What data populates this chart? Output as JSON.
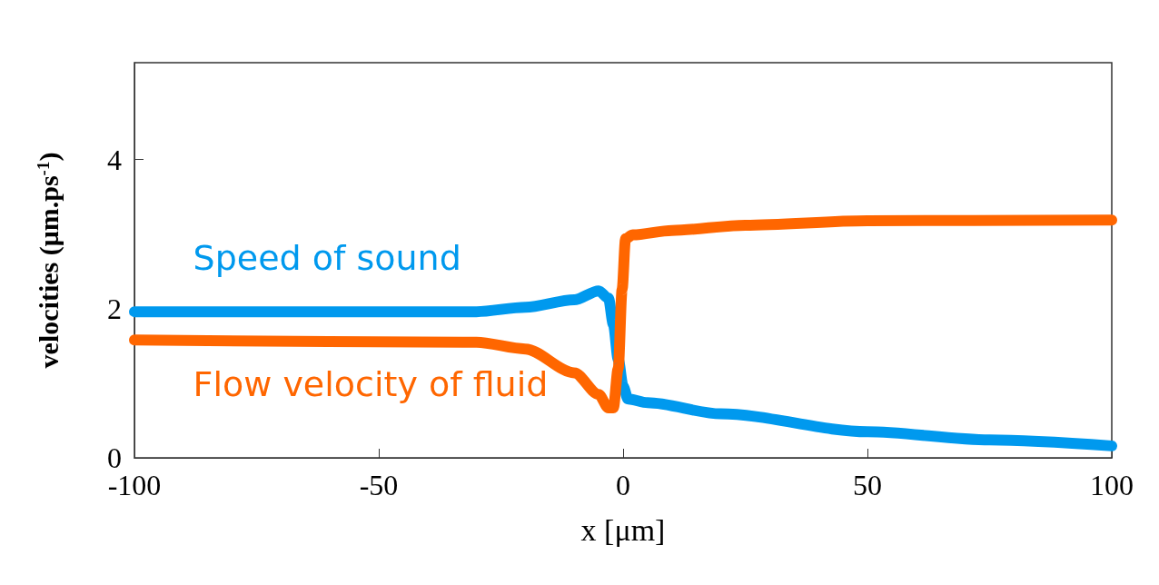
{
  "chart_data": {
    "type": "line",
    "xlabel": "x [μm]",
    "ylabel": "velocities (μm.ps$^{-1}$)",
    "xlim": [
      -100,
      100
    ],
    "xticks": [
      -100,
      -50,
      0,
      50,
      100
    ],
    "ylim": [
      0,
      5.3
    ],
    "yticks": [
      0,
      2,
      4
    ],
    "grid": false,
    "legend": false,
    "marker": "none",
    "line_style": "solid",
    "series": [
      {
        "name": "Speed of sound",
        "color": "#0099ee",
        "x": [
          -100,
          -30,
          -20,
          -10,
          -5,
          -3,
          -2,
          -1,
          0,
          1,
          5,
          20,
          50,
          75,
          100
        ],
        "values": [
          1.96,
          1.96,
          2.02,
          2.12,
          2.24,
          2.14,
          1.79,
          1.32,
          0.96,
          0.79,
          0.74,
          0.59,
          0.35,
          0.24,
          0.16
        ]
      },
      {
        "name": "Flow velocity of fluid",
        "color": "#ff6600",
        "x": [
          -100,
          -30,
          -20,
          -10,
          -5,
          -3,
          -2,
          -1,
          -0.2,
          0.5,
          2,
          10,
          25,
          50,
          100
        ],
        "values": [
          1.58,
          1.55,
          1.46,
          1.14,
          0.85,
          0.67,
          0.67,
          1.2,
          2.26,
          2.94,
          2.99,
          3.05,
          3.12,
          3.18,
          3.19
        ]
      }
    ]
  }
}
